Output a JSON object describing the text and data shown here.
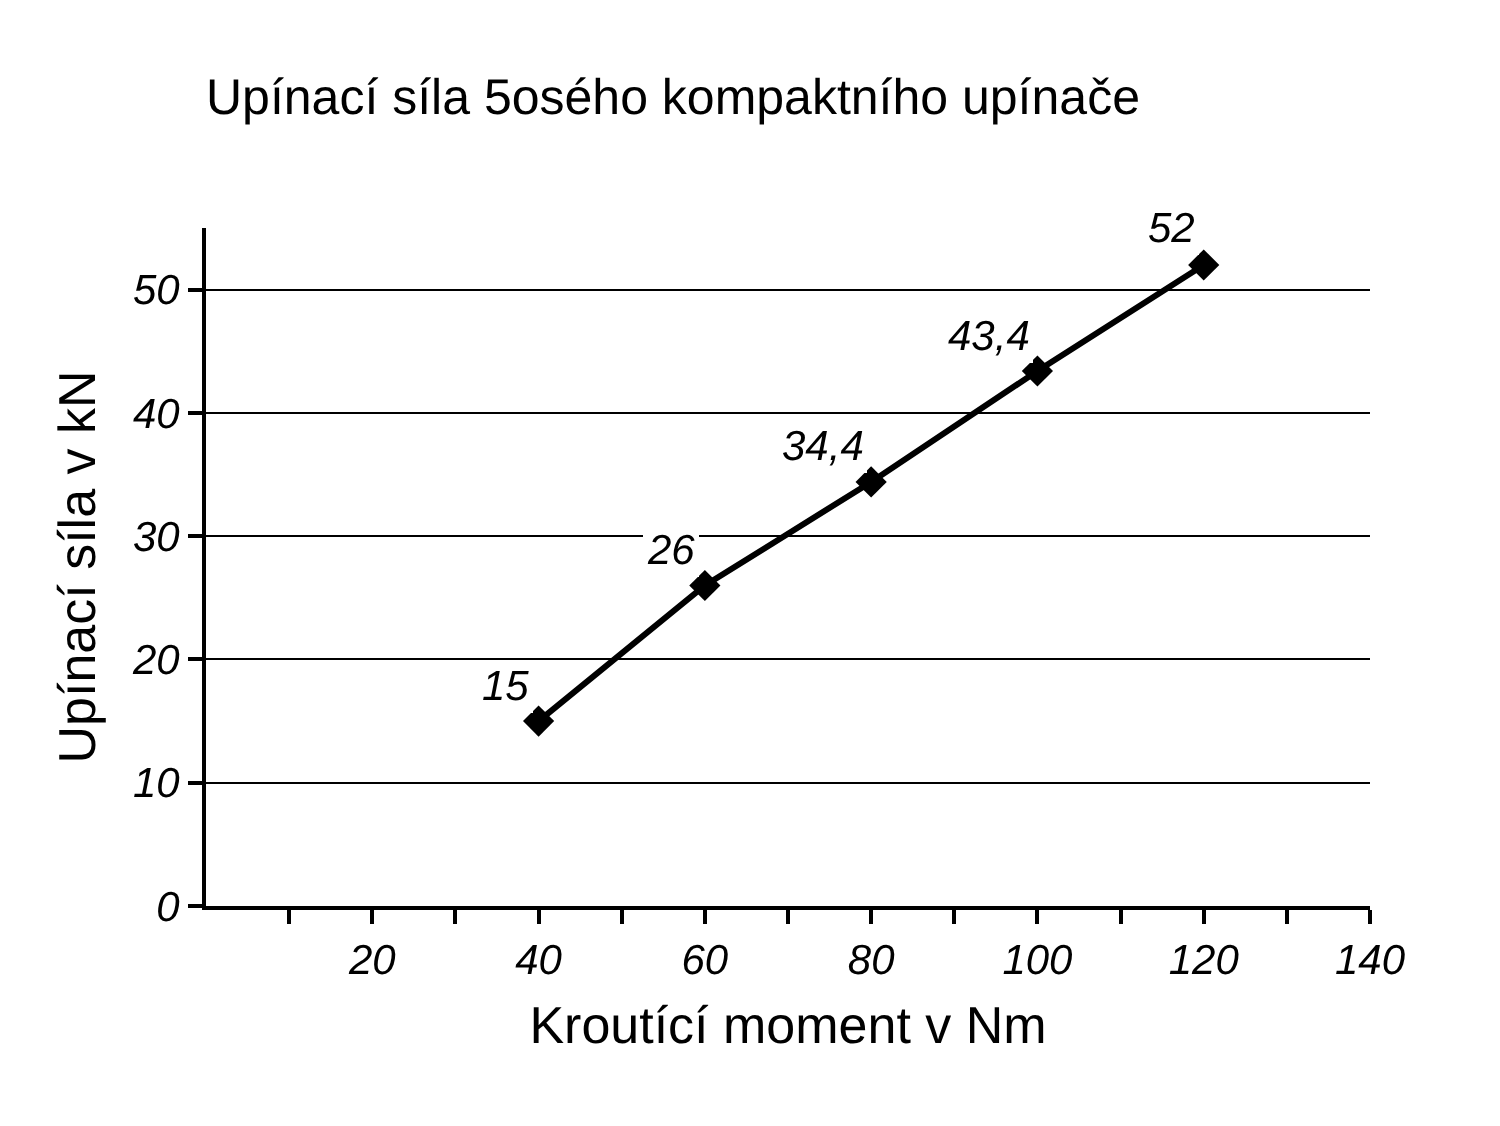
{
  "chart_data": {
    "type": "line",
    "title": "Upínací síla 5osého kompaktního upínače",
    "xlabel": "Kroutící moment v Nm",
    "ylabel": "Upínací síla v kN",
    "x": [
      40,
      60,
      80,
      100,
      120
    ],
    "series": [
      {
        "color": "#000000",
        "values": [
          15,
          26,
          34.4,
          43.4,
          52
        ],
        "value_labels": [
          "15",
          "26",
          "34,4",
          "43,4",
          "52"
        ]
      }
    ],
    "xlim": [
      0,
      140
    ],
    "xticks": [
      {
        "value": 10,
        "label": null
      },
      20,
      {
        "value": 30,
        "label": null
      },
      40,
      {
        "value": 50,
        "label": null
      },
      60,
      {
        "value": 70,
        "label": null
      },
      80,
      {
        "value": 90,
        "label": null
      },
      100,
      {
        "value": 110,
        "label": null
      },
      120,
      {
        "value": 130,
        "label": null
      },
      140
    ],
    "ylim": [
      0,
      55
    ],
    "yticks": [
      0,
      10,
      20,
      30,
      40,
      50
    ],
    "grid": "y",
    "marker": "diamond",
    "line_style": "solid"
  }
}
